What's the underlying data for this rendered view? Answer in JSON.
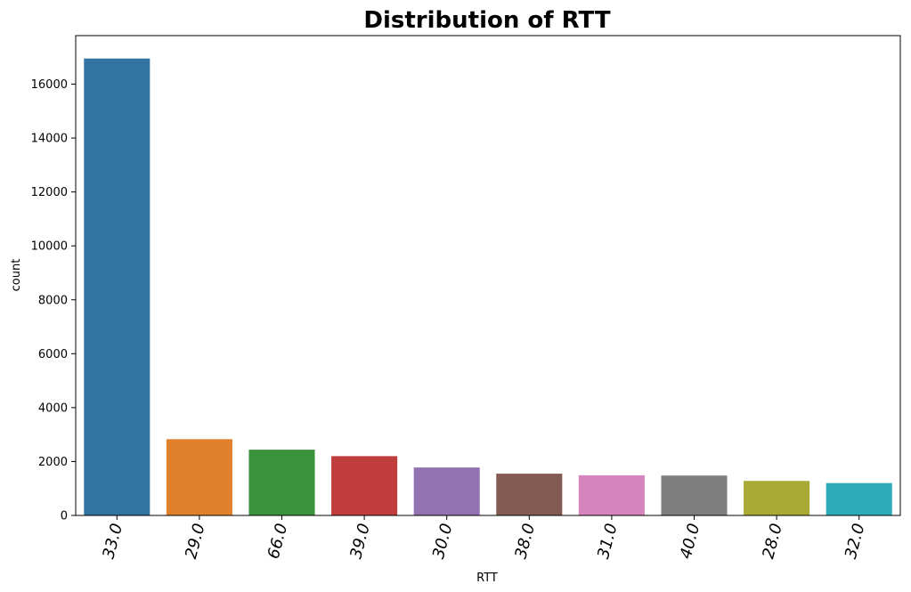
{
  "chart_data": {
    "type": "bar",
    "title": "Distribution of RTT",
    "xlabel": "RTT",
    "ylabel": "count",
    "categories": [
      "33.0",
      "29.0",
      "66.0",
      "39.0",
      "30.0",
      "38.0",
      "31.0",
      "40.0",
      "28.0",
      "32.0"
    ],
    "values": [
      16950,
      2830,
      2440,
      2200,
      1780,
      1550,
      1490,
      1480,
      1280,
      1200
    ],
    "colors": [
      "#3274a1",
      "#e1812c",
      "#3a923a",
      "#c03d3e",
      "#9372b2",
      "#845b53",
      "#d684bd",
      "#7f7f7f",
      "#a9aa35",
      "#2eabb8"
    ],
    "ylim": [
      0,
      17800
    ],
    "yticks": [
      0,
      2000,
      4000,
      6000,
      8000,
      10000,
      12000,
      14000,
      16000
    ],
    "grid": false,
    "legend": "none"
  }
}
